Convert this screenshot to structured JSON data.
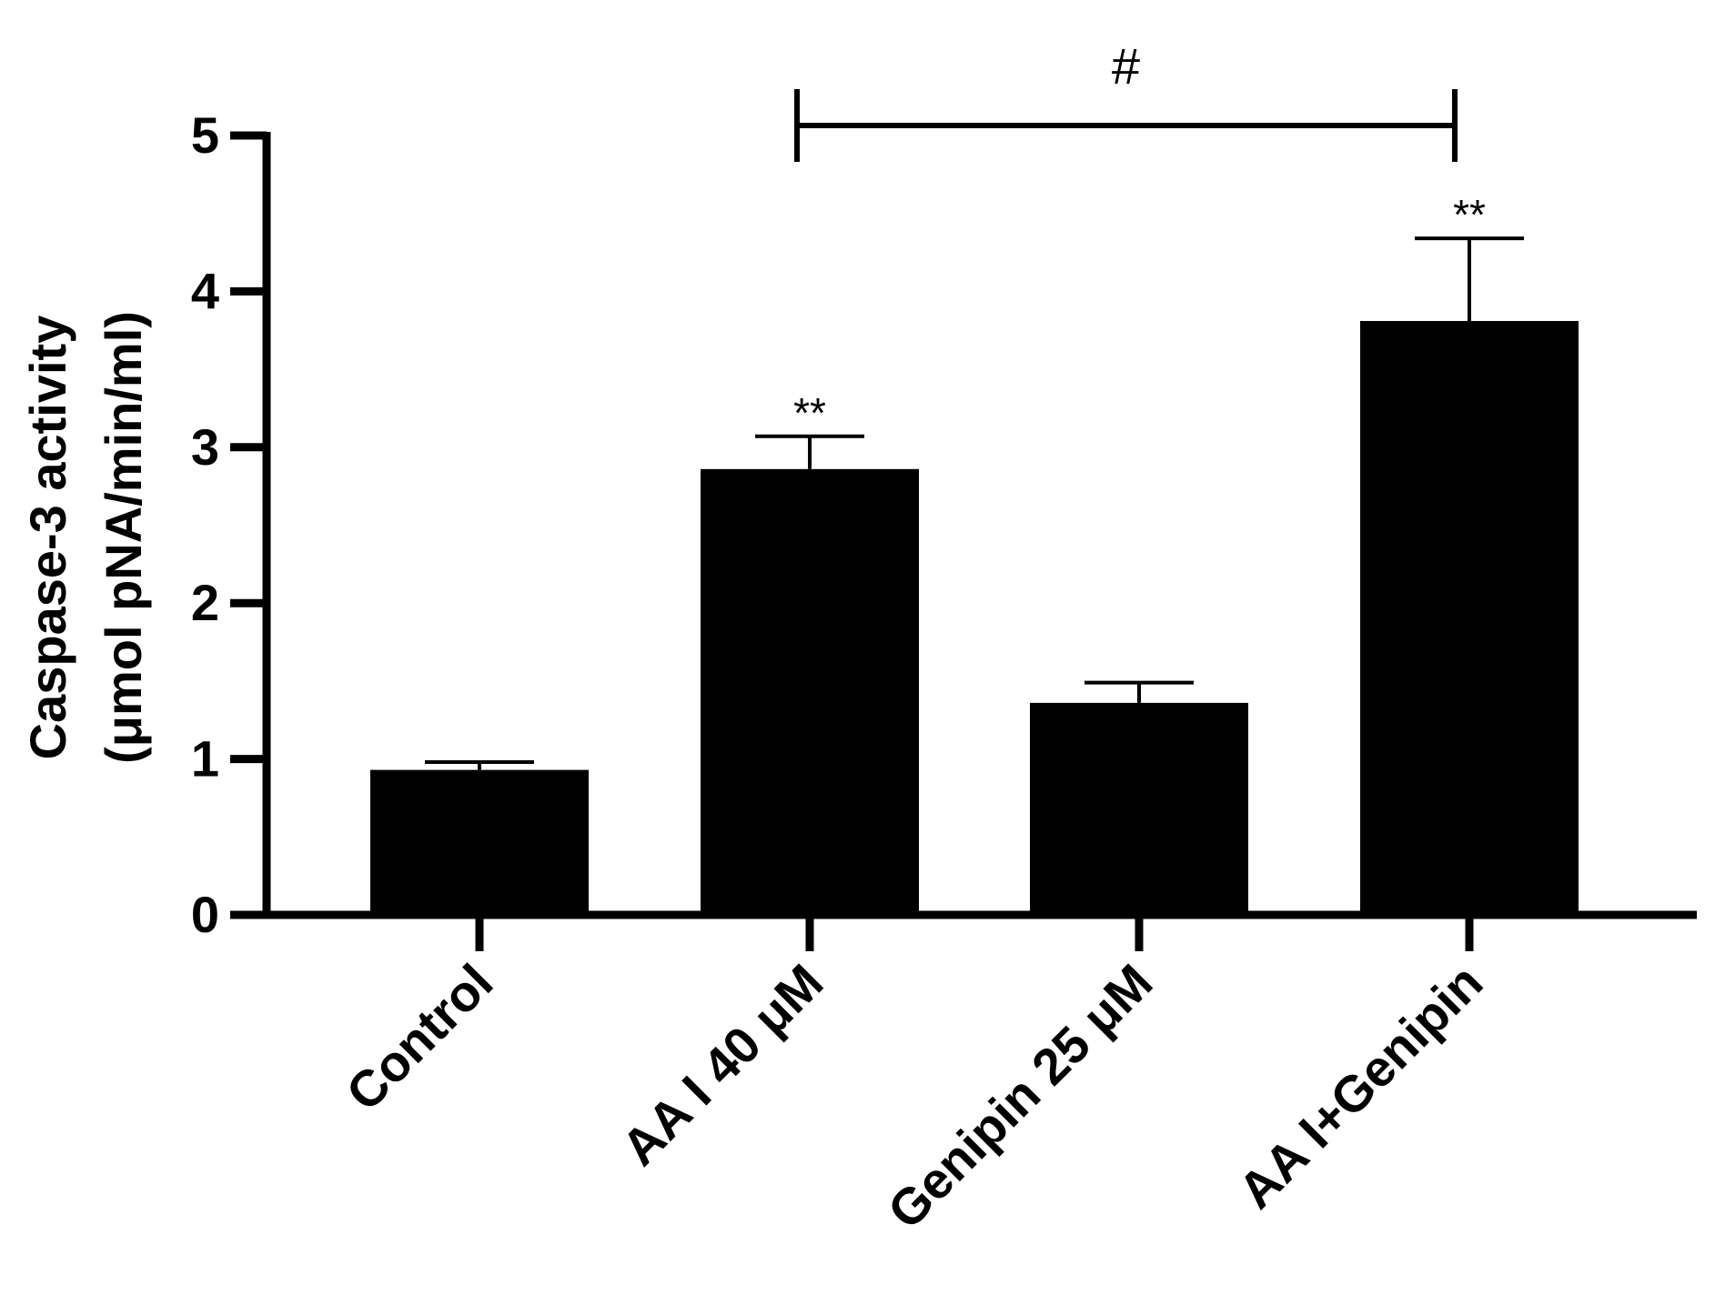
{
  "colors": {
    "bar_fill": "#000000",
    "axis": "#000000",
    "background": "#ffffff"
  },
  "chart_data": {
    "type": "bar",
    "title": "",
    "xlabel": "",
    "ylabel_line1": "Caspase-3 activity",
    "ylabel_line2": "(μmol pNA/min/ml)",
    "categories": [
      "Control",
      "AA I 40 μM",
      "Genipin 25 μM",
      "AA I+Genipin"
    ],
    "values": [
      0.93,
      2.86,
      1.36,
      3.81
    ],
    "error_upper": [
      0.05,
      0.21,
      0.13,
      0.53
    ],
    "annotations": [
      "",
      "**",
      "",
      "**"
    ],
    "ylim": [
      0,
      5
    ],
    "yticks": [
      "0",
      "1",
      "2",
      "3",
      "4",
      "5"
    ],
    "grid": false,
    "legend": "none",
    "comparison": {
      "from_category": "AA I 40 μM",
      "to_category": "AA I+Genipin",
      "label": "#"
    }
  }
}
